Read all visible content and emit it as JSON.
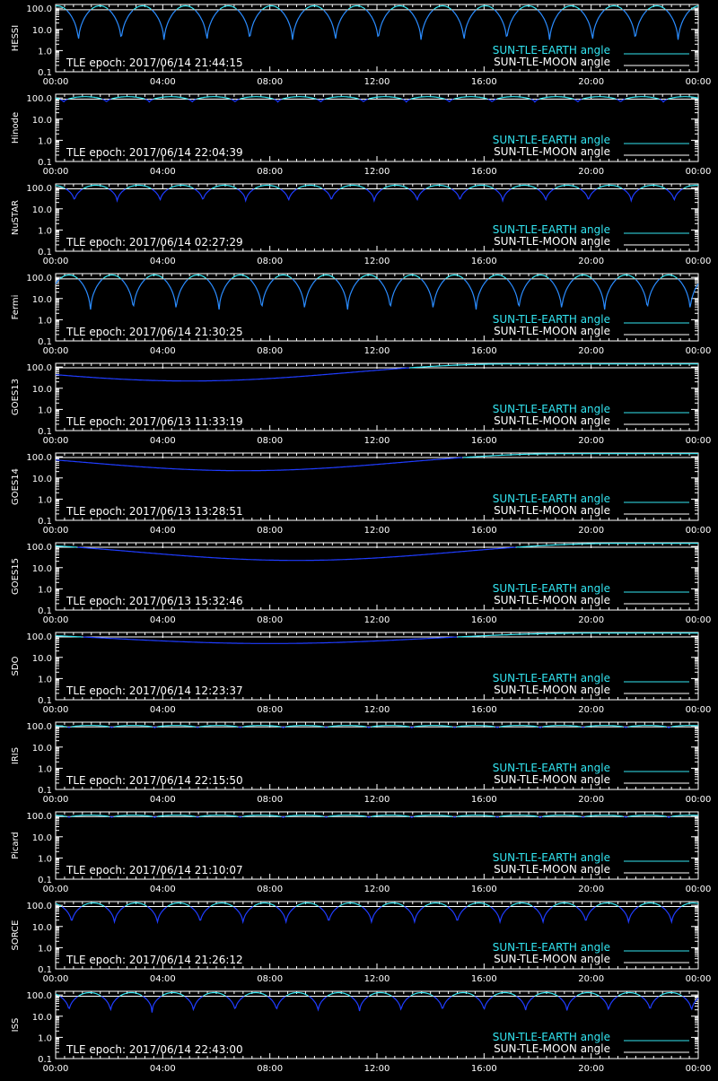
{
  "theme": {
    "background": "#000000",
    "axis_color": "#ffffff",
    "earth_color": "#33e6f2",
    "moon_color": "#ffffff",
    "data_line_color": "#1f3cff",
    "dip_color": "#2a8cff"
  },
  "legend": {
    "earth_label": "SUN-TLE-EARTH angle",
    "moon_label": "SUN-TLE-MOON angle"
  },
  "chart_data": [
    {
      "type": "line",
      "satellite": "HESSI",
      "epoch_text": "TLE epoch: 2017/06/14 21:44:15",
      "x_ticks": [
        "00:00",
        "04:00",
        "08:00",
        "12:00",
        "16:00",
        "20:00",
        "00:00"
      ],
      "y_ticks": [
        "100.0",
        "10.0",
        "1.0",
        "0.1"
      ],
      "y_scale": "log",
      "ylim": [
        0.1,
        150
      ],
      "xlim_hours": [
        0,
        24
      ],
      "pattern": "orbit",
      "period_hours": 1.6,
      "phase_hours": 0.85,
      "dip_min": 2,
      "base_max": 130,
      "moon_level": 85
    },
    {
      "type": "line",
      "satellite": "Hinode",
      "epoch_text": "TLE epoch: 2017/06/14 22:04:39",
      "x_ticks": [
        "00:00",
        "04:00",
        "08:00",
        "12:00",
        "16:00",
        "20:00",
        "00:00"
      ],
      "y_ticks": [
        "100.0",
        "10.0",
        "1.0",
        "0.1"
      ],
      "y_scale": "log",
      "ylim": [
        0.1,
        150
      ],
      "xlim_hours": [
        0,
        24
      ],
      "pattern": "orbit",
      "period_hours": 1.6,
      "phase_hours": 0.3,
      "dip_min": 60,
      "base_max": 115,
      "moon_level": 88
    },
    {
      "type": "line",
      "satellite": "NuSTAR",
      "epoch_text": "TLE epoch: 2017/06/14 02:27:29",
      "x_ticks": [
        "00:00",
        "04:00",
        "08:00",
        "12:00",
        "16:00",
        "20:00",
        "00:00"
      ],
      "y_ticks": [
        "100.0",
        "10.0",
        "1.0",
        "0.1"
      ],
      "y_scale": "log",
      "ylim": [
        0.1,
        150
      ],
      "xlim_hours": [
        0,
        24
      ],
      "pattern": "orbit",
      "period_hours": 1.6,
      "phase_hours": 0.7,
      "dip_min": 20,
      "base_max": 130,
      "moon_level": 88
    },
    {
      "type": "line",
      "satellite": "Fermi",
      "epoch_text": "TLE epoch: 2017/06/14 21:30:25",
      "x_ticks": [
        "00:00",
        "04:00",
        "08:00",
        "12:00",
        "16:00",
        "20:00",
        "00:00"
      ],
      "y_ticks": [
        "100.0",
        "10.0",
        "1.0",
        "0.1"
      ],
      "y_scale": "log",
      "ylim": [
        0.1,
        150
      ],
      "xlim_hours": [
        0,
        24
      ],
      "pattern": "orbit",
      "period_hours": 1.6,
      "phase_hours": 1.3,
      "dip_min": 2,
      "base_max": 130,
      "moon_level": 85
    },
    {
      "type": "line",
      "satellite": "GOES13",
      "epoch_text": "TLE epoch: 2017/06/13 11:33:19",
      "x_ticks": [
        "00:00",
        "04:00",
        "08:00",
        "12:00",
        "16:00",
        "20:00",
        "00:00"
      ],
      "y_ticks": [
        "100.0",
        "10.0",
        "1.0",
        "0.1"
      ],
      "y_scale": "log",
      "ylim": [
        0.1,
        150
      ],
      "xlim_hours": [
        0,
        24
      ],
      "pattern": "geo",
      "min_hour": 5.0,
      "min_value": 22,
      "max_value": 140,
      "moon_level": 92
    },
    {
      "type": "line",
      "satellite": "GOES14",
      "epoch_text": "TLE epoch: 2017/06/13 13:28:51",
      "x_ticks": [
        "00:00",
        "04:00",
        "08:00",
        "12:00",
        "16:00",
        "20:00",
        "00:00"
      ],
      "y_ticks": [
        "100.0",
        "10.0",
        "1.0",
        "0.1"
      ],
      "y_scale": "log",
      "ylim": [
        0.1,
        150
      ],
      "xlim_hours": [
        0,
        24
      ],
      "pattern": "geo",
      "min_hour": 7.0,
      "min_value": 22,
      "max_value": 140,
      "moon_level": 92
    },
    {
      "type": "line",
      "satellite": "GOES15",
      "epoch_text": "TLE epoch: 2017/06/13 15:32:46",
      "x_ticks": [
        "00:00",
        "04:00",
        "08:00",
        "12:00",
        "16:00",
        "20:00",
        "00:00"
      ],
      "y_ticks": [
        "100.0",
        "10.0",
        "1.0",
        "0.1"
      ],
      "y_scale": "log",
      "ylim": [
        0.1,
        150
      ],
      "xlim_hours": [
        0,
        24
      ],
      "pattern": "geo",
      "min_hour": 9.0,
      "min_value": 22,
      "max_value": 140,
      "moon_level": 92
    },
    {
      "type": "line",
      "satellite": "SDO",
      "epoch_text": "TLE epoch: 2017/06/14 12:23:37",
      "x_ticks": [
        "00:00",
        "04:00",
        "08:00",
        "12:00",
        "16:00",
        "20:00",
        "00:00"
      ],
      "y_ticks": [
        "100.0",
        "10.0",
        "1.0",
        "0.1"
      ],
      "y_scale": "log",
      "ylim": [
        0.1,
        150
      ],
      "xlim_hours": [
        0,
        24
      ],
      "pattern": "geo",
      "min_hour": 8.0,
      "min_value": 45,
      "max_value": 140,
      "moon_level": 92
    },
    {
      "type": "line",
      "satellite": "IRIS",
      "epoch_text": "TLE epoch: 2017/06/14 22:15:50",
      "x_ticks": [
        "00:00",
        "04:00",
        "08:00",
        "12:00",
        "16:00",
        "20:00",
        "00:00"
      ],
      "y_ticks": [
        "100.0",
        "10.0",
        "1.0",
        "0.1"
      ],
      "y_scale": "log",
      "ylim": [
        0.1,
        150
      ],
      "xlim_hours": [
        0,
        24
      ],
      "pattern": "orbit",
      "period_hours": 1.6,
      "phase_hours": 0.5,
      "dip_min": 80,
      "base_max": 105,
      "moon_level": 90
    },
    {
      "type": "line",
      "satellite": "Picard",
      "epoch_text": "TLE epoch: 2017/06/14 21:10:07",
      "x_ticks": [
        "00:00",
        "04:00",
        "08:00",
        "12:00",
        "16:00",
        "20:00",
        "00:00"
      ],
      "y_ticks": [
        "100.0",
        "10.0",
        "1.0",
        "0.1"
      ],
      "y_scale": "log",
      "ylim": [
        0.1,
        150
      ],
      "xlim_hours": [
        0,
        24
      ],
      "pattern": "orbit",
      "period_hours": 1.6,
      "phase_hours": 0.5,
      "dip_min": 80,
      "base_max": 105,
      "moon_level": 90
    },
    {
      "type": "line",
      "satellite": "SORCE",
      "epoch_text": "TLE epoch: 2017/06/14 21:26:12",
      "x_ticks": [
        "00:00",
        "04:00",
        "08:00",
        "12:00",
        "16:00",
        "20:00",
        "00:00"
      ],
      "y_ticks": [
        "100.0",
        "10.0",
        "1.0",
        "0.1"
      ],
      "y_scale": "log",
      "ylim": [
        0.1,
        150
      ],
      "xlim_hours": [
        0,
        24
      ],
      "pattern": "orbit",
      "period_hours": 1.6,
      "phase_hours": 0.6,
      "dip_min": 12,
      "base_max": 130,
      "moon_level": 88
    },
    {
      "type": "line",
      "satellite": "ISS",
      "epoch_text": "TLE epoch: 2017/06/14 22:43:00",
      "x_ticks": [
        "00:00",
        "04:00",
        "08:00",
        "12:00",
        "16:00",
        "20:00",
        "00:00"
      ],
      "y_ticks": [
        "100.0",
        "10.0",
        "1.0",
        "0.1"
      ],
      "y_scale": "log",
      "ylim": [
        0.1,
        150
      ],
      "xlim_hours": [
        0,
        24
      ],
      "pattern": "orbit",
      "period_hours": 1.55,
      "phase_hours": 0.5,
      "dip_min": 15,
      "base_max": 130,
      "moon_level": 88
    }
  ]
}
